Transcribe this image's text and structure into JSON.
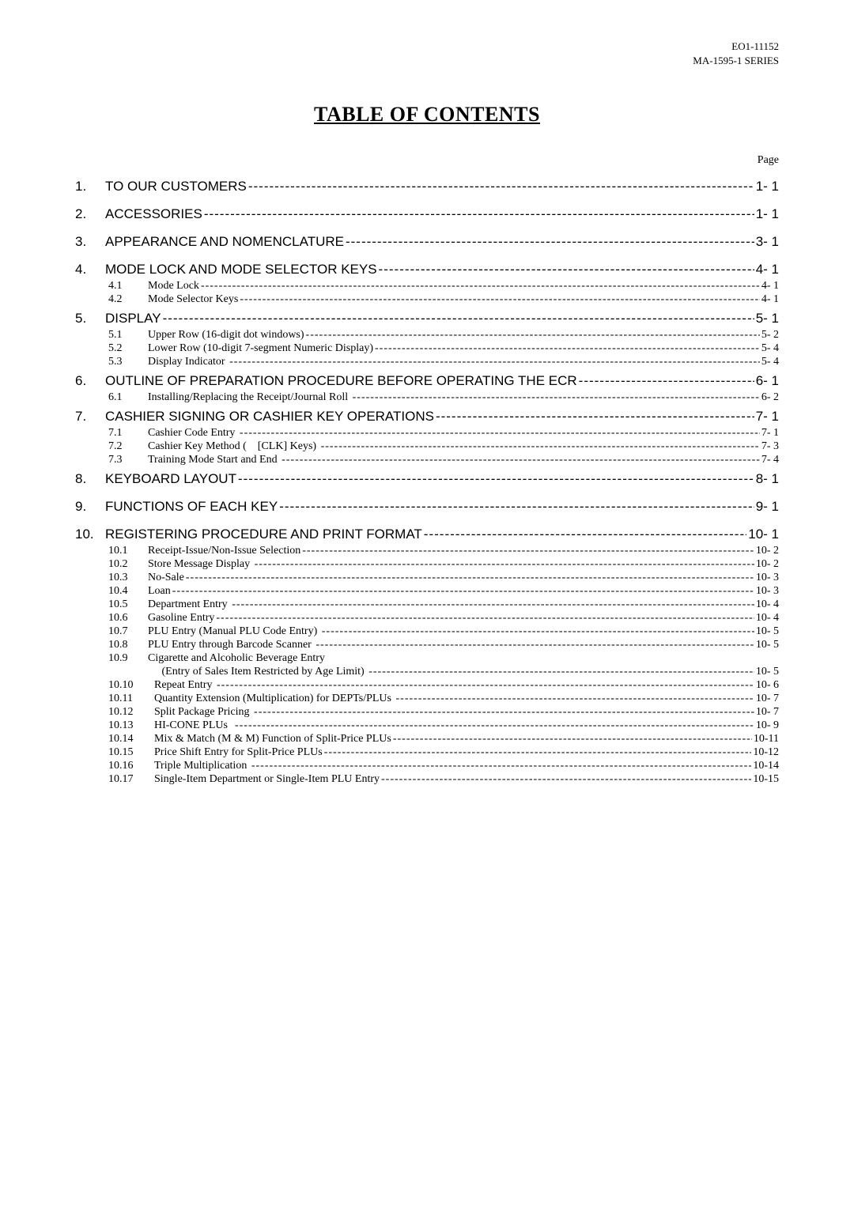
{
  "header": {
    "line1": "EO1-11152",
    "line2": "MA-1595-1 SERIES"
  },
  "title": "TABLE OF CONTENTS",
  "pageLabel": "Page",
  "sections": [
    {
      "num": "1.",
      "label": "TO OUR CUSTOMERS",
      "page": "1- 1",
      "subs": []
    },
    {
      "num": "2.",
      "label": "ACCESSORIES",
      "page": "1- 1",
      "subs": []
    },
    {
      "num": "3.",
      "label": "APPEARANCE AND NOMENCLATURE",
      "page": "3- 1",
      "subs": []
    },
    {
      "num": "4.",
      "label": "MODE LOCK AND MODE SELECTOR KEYS ",
      "page": "4- 1",
      "subs": [
        {
          "num": "4.1",
          "label": "Mode Lock",
          "page": "4- 1"
        },
        {
          "num": "4.2",
          "label": "Mode Selector Keys",
          "page": "4- 1"
        }
      ]
    },
    {
      "num": "5.",
      "label": "DISPLAY",
      "page": "5- 1",
      "tight": true,
      "subs": [
        {
          "num": "5.1",
          "label": "Upper Row (16-digit dot windows)",
          "page": "5- 2"
        },
        {
          "num": "5.2",
          "label": "Lower Row (10-digit 7-segment Numeric Display)",
          "page": "5- 4"
        },
        {
          "num": "5.3",
          "label": "Display Indicator ",
          "page": "5- 4"
        }
      ]
    },
    {
      "num": "6.",
      "label": "OUTLINE OF PREPARATION PROCEDURE BEFORE OPERATING THE ECR",
      "page": "6- 1",
      "tight": true,
      "subs": [
        {
          "num": "6.1",
          "label": "Installing/Replacing the Receipt/Journal Roll ",
          "page": "6- 2"
        }
      ]
    },
    {
      "num": "7.",
      "label": "CASHIER SIGNING OR CASHIER KEY OPERATIONS",
      "page": "7- 1",
      "tight": true,
      "subs": [
        {
          "num": "7.1",
          "label": "Cashier Code Entry ",
          "page": "7- 1"
        },
        {
          "num": "7.2",
          "label": "Cashier Key Method (    [CLK] Keys) ",
          "page": "7- 3"
        },
        {
          "num": "7.3",
          "label": "Training Mode Start and End ",
          "page": "7- 4"
        }
      ]
    },
    {
      "num": "8.",
      "label": "KEYBOARD LAYOUT ",
      "page": "8- 1",
      "tight": true,
      "subs": []
    },
    {
      "num": "9.",
      "label": "FUNCTIONS OF EACH KEY",
      "page": "9- 1",
      "subs": []
    },
    {
      "num": "10.",
      "label": "REGISTERING PROCEDURE AND PRINT FORMAT",
      "page": "10- 1",
      "subs": [
        {
          "num": "10.1",
          "label": "Receipt-Issue/Non-Issue Selection",
          "page": "10- 2"
        },
        {
          "num": "10.2",
          "label": "Store Message Display ",
          "page": "10- 2"
        },
        {
          "num": "10.3",
          "label": "No-Sale",
          "page": "10- 3"
        },
        {
          "num": "10.4",
          "label": "Loan",
          "page": "10- 3"
        },
        {
          "num": "10.5",
          "label": "Department Entry ",
          "page": "10- 4"
        },
        {
          "num": "10.6",
          "label": "Gasoline Entry",
          "page": "10- 4"
        },
        {
          "num": "10.7",
          "label": "PLU Entry (Manual PLU Code Entry) ",
          "page": "10- 5"
        },
        {
          "num": "10.8",
          "label": "PLU Entry through Barcode Scanner ",
          "page": "10- 5"
        },
        {
          "num": "10.9",
          "label": "Cigarette and Alcoholic Beverage Entry",
          "page": "",
          "noleader": true
        },
        {
          "num": "",
          "label": "     (Entry of Sales Item Restricted by Age Limit) ",
          "page": "10- 5"
        },
        {
          "num": "10.10",
          "label": "Repeat Entry ",
          "page": "10- 6"
        },
        {
          "num": "10.11",
          "label": "Quantity Extension (Multiplication) for DEPTs/PLUs ",
          "page": "10- 7"
        },
        {
          "num": "10.12",
          "label": "Split Package Pricing ",
          "page": "10- 7"
        },
        {
          "num": "10.13",
          "label": "HI-CONE PLUs  ",
          "page": "10- 9",
          "bold": true
        },
        {
          "num": "10.14",
          "label": "Mix & Match (M & M) Function of Split-Price PLUs",
          "page": "10-11"
        },
        {
          "num": "10.15",
          "label": "Price Shift Entry for Split-Price PLUs",
          "page": "10-12"
        },
        {
          "num": "10.16",
          "label": "Triple Multiplication ",
          "page": "10-14"
        },
        {
          "num": "10.17",
          "label": "Single-Item Department or Single-Item PLU Entry",
          "page": "10-15"
        }
      ]
    }
  ]
}
